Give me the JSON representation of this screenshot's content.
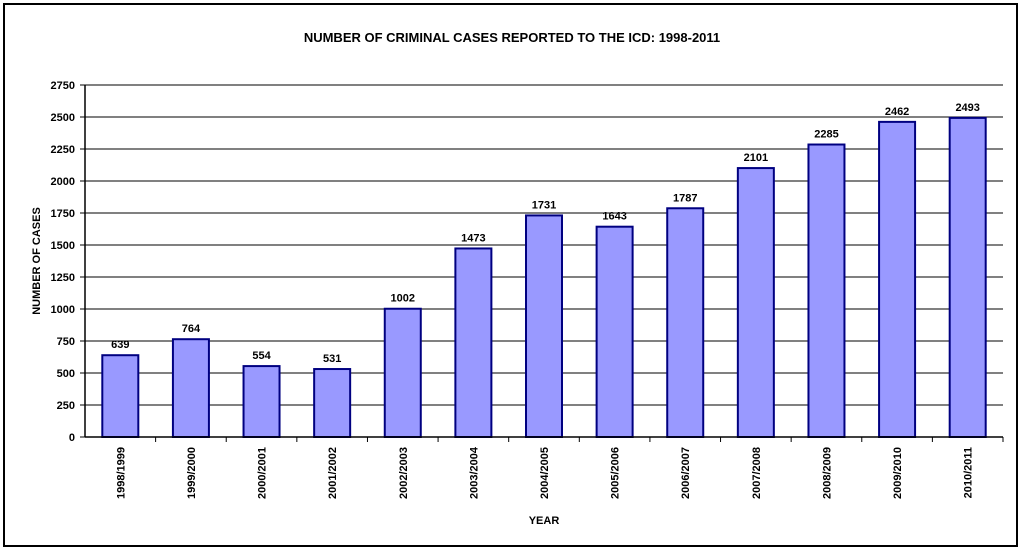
{
  "chart_data": {
    "type": "bar",
    "title": "NUMBER OF CRIMINAL CASES REPORTED TO THE ICD: 1998-2011",
    "xlabel": "YEAR",
    "ylabel": "NUMBER OF CASES",
    "categories": [
      "1998/1999",
      "1999/2000",
      "2000/2001",
      "2001/2002",
      "2002/2003",
      "2003/2004",
      "2004/2005",
      "2005/2006",
      "2006/2007",
      "2007/2008",
      "2008/2009",
      "2009/2010",
      "2010/2011"
    ],
    "values": [
      639,
      764,
      554,
      531,
      1002,
      1473,
      1731,
      1643,
      1787,
      2101,
      2285,
      2462,
      2493
    ],
    "ylim": [
      0,
      2750
    ],
    "yticks": [
      0,
      250,
      500,
      750,
      1000,
      1250,
      1500,
      1750,
      2000,
      2250,
      2500,
      2750
    ],
    "grid": true,
    "legend": "none",
    "bar_color": "#9999ff",
    "bar_edge_color": "#000080"
  }
}
